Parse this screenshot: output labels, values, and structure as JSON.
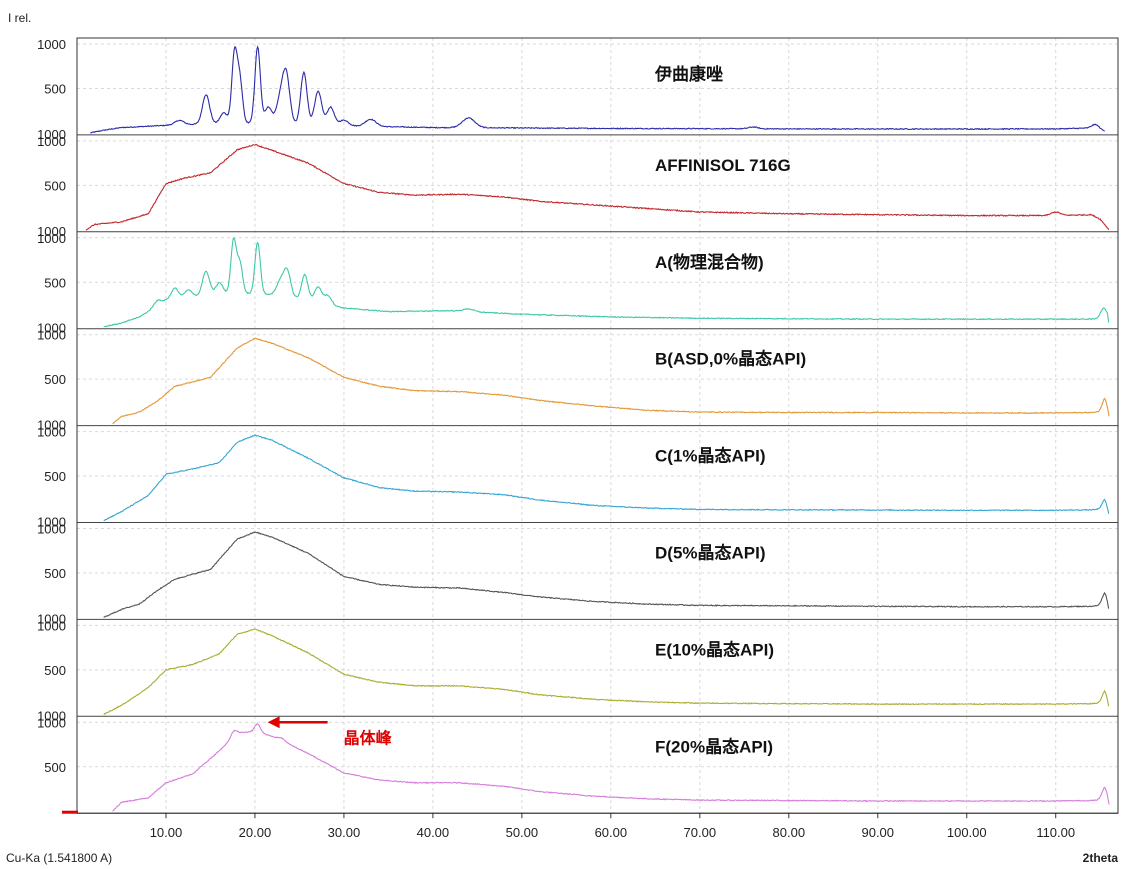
{
  "chart_data": {
    "type": "line",
    "y_axis_label": "I rel.",
    "x_axis_label": "2theta",
    "radiation_label": "Cu-Ka (1.541800 A)",
    "x_range": [
      0.0,
      117.0
    ],
    "x_ticks": [
      "10.00",
      "20.00",
      "30.00",
      "40.00",
      "50.00",
      "60.00",
      "70.00",
      "80.00",
      "90.00",
      "100.00",
      "110.00"
    ],
    "x_tick_values": [
      10,
      20,
      30,
      40,
      50,
      60,
      70,
      80,
      90,
      100,
      110
    ],
    "y_ticks": [
      "1000",
      "500"
    ],
    "y_tick_values": [
      1000,
      500
    ],
    "bottom_tick_label": "1000",
    "y_range": [
      0,
      1000
    ],
    "grid": true,
    "annotation": {
      "text": "晶体峰",
      "x": 20.3,
      "panel": 7,
      "color": "#e00000"
    },
    "panels": [
      {
        "name": "伊曲康唑",
        "color": "#2b2ba8",
        "baseline": [
          [
            1.5,
            0
          ],
          [
            3,
            30
          ],
          [
            5,
            60
          ],
          [
            8,
            75
          ],
          [
            10,
            85
          ],
          [
            14,
            100
          ],
          [
            18,
            110
          ],
          [
            22,
            110
          ],
          [
            27,
            95
          ],
          [
            32,
            75
          ],
          [
            40,
            60
          ],
          [
            45,
            58
          ],
          [
            50,
            55
          ],
          [
            60,
            50
          ],
          [
            70,
            48
          ],
          [
            80,
            45
          ],
          [
            90,
            44
          ],
          [
            100,
            44
          ],
          [
            110,
            45
          ],
          [
            114,
            55
          ],
          [
            115.5,
            20
          ]
        ],
        "peaks": [
          [
            11.5,
            50,
            0.5
          ],
          [
            14.5,
            330,
            0.4
          ],
          [
            16.5,
            120,
            0.4
          ],
          [
            17.7,
            780,
            0.3
          ],
          [
            18.3,
            480,
            0.3
          ],
          [
            20.3,
            860,
            0.3
          ],
          [
            21.5,
            180,
            0.4
          ],
          [
            22.8,
            250,
            0.4
          ],
          [
            23.5,
            560,
            0.4
          ],
          [
            25.5,
            580,
            0.35
          ],
          [
            27.1,
            370,
            0.4
          ],
          [
            28.5,
            200,
            0.4
          ],
          [
            30,
            60,
            0.5
          ],
          [
            33,
            80,
            0.6
          ],
          [
            44,
            110,
            0.7
          ],
          [
            76,
            20,
            0.5
          ],
          [
            114.5,
            50,
            0.4
          ]
        ],
        "noise": 10
      },
      {
        "name": "AFFINISOL 716G",
        "color": "#c0282d",
        "baseline": [
          [
            1,
            0
          ],
          [
            2,
            60
          ],
          [
            5,
            90
          ],
          [
            8,
            180
          ],
          [
            10,
            520
          ],
          [
            12,
            580
          ],
          [
            15,
            640
          ],
          [
            18,
            900
          ],
          [
            20,
            960
          ],
          [
            22,
            890
          ],
          [
            26,
            750
          ],
          [
            30,
            520
          ],
          [
            34,
            420
          ],
          [
            38,
            390
          ],
          [
            43,
            400
          ],
          [
            48,
            370
          ],
          [
            52,
            320
          ],
          [
            58,
            280
          ],
          [
            64,
            240
          ],
          [
            70,
            200
          ],
          [
            80,
            180
          ],
          [
            90,
            170
          ],
          [
            100,
            160
          ],
          [
            110,
            160
          ],
          [
            114,
            170
          ],
          [
            115,
            120
          ],
          [
            116,
            0
          ]
        ],
        "peaks": [
          [
            110,
            40,
            0.5
          ]
        ],
        "noise": 12
      },
      {
        "name": "A(物理混合物)",
        "color": "#3ec9a7",
        "baseline": [
          [
            3,
            0
          ],
          [
            5,
            40
          ],
          [
            7,
            110
          ],
          [
            8.5,
            200
          ],
          [
            10,
            300
          ],
          [
            13,
            340
          ],
          [
            18,
            380
          ],
          [
            22,
            360
          ],
          [
            26,
            300
          ],
          [
            30,
            210
          ],
          [
            35,
            170
          ],
          [
            42,
            180
          ],
          [
            50,
            140
          ],
          [
            60,
            110
          ],
          [
            70,
            95
          ],
          [
            80,
            90
          ],
          [
            90,
            85
          ],
          [
            100,
            85
          ],
          [
            110,
            85
          ],
          [
            114,
            85
          ],
          [
            115.8,
            100
          ],
          [
            116,
            0
          ]
        ],
        "peaks": [
          [
            9,
            60,
            0.4
          ],
          [
            11,
            120,
            0.4
          ],
          [
            12.5,
            80,
            0.4
          ],
          [
            14.5,
            270,
            0.4
          ],
          [
            16,
            130,
            0.4
          ],
          [
            17.6,
            600,
            0.3
          ],
          [
            18.3,
            340,
            0.3
          ],
          [
            20.3,
            580,
            0.3
          ],
          [
            22.8,
            150,
            0.4
          ],
          [
            23.6,
            300,
            0.4
          ],
          [
            25.6,
            280,
            0.35
          ],
          [
            27.1,
            170,
            0.4
          ],
          [
            28.2,
            100,
            0.4
          ],
          [
            44,
            30,
            0.6
          ],
          [
            115.4,
            110,
            0.35
          ]
        ],
        "noise": 10
      },
      {
        "name": "B(ASD,0%晶态API)",
        "color": "#e39838",
        "baseline": [
          [
            4,
            0
          ],
          [
            5,
            80
          ],
          [
            7,
            130
          ],
          [
            9,
            250
          ],
          [
            11,
            420
          ],
          [
            15,
            520
          ],
          [
            18,
            850
          ],
          [
            20,
            960
          ],
          [
            22,
            900
          ],
          [
            26,
            740
          ],
          [
            30,
            520
          ],
          [
            34,
            420
          ],
          [
            38,
            370
          ],
          [
            43,
            360
          ],
          [
            48,
            320
          ],
          [
            52,
            260
          ],
          [
            58,
            200
          ],
          [
            64,
            150
          ],
          [
            70,
            130
          ],
          [
            80,
            125
          ],
          [
            90,
            125
          ],
          [
            100,
            120
          ],
          [
            110,
            120
          ],
          [
            114,
            125
          ],
          [
            115.5,
            130
          ],
          [
            116,
            0
          ]
        ],
        "peaks": [
          [
            115.6,
            160,
            0.35
          ]
        ],
        "noise": 10
      },
      {
        "name": "C(1%晶态API)",
        "color": "#36a7d4",
        "baseline": [
          [
            3,
            0
          ],
          [
            5,
            100
          ],
          [
            8,
            280
          ],
          [
            10,
            520
          ],
          [
            13,
            580
          ],
          [
            16,
            650
          ],
          [
            18,
            880
          ],
          [
            20,
            960
          ],
          [
            22,
            900
          ],
          [
            26,
            700
          ],
          [
            30,
            480
          ],
          [
            34,
            370
          ],
          [
            38,
            330
          ],
          [
            43,
            320
          ],
          [
            48,
            290
          ],
          [
            52,
            230
          ],
          [
            58,
            170
          ],
          [
            64,
            140
          ],
          [
            70,
            125
          ],
          [
            80,
            120
          ],
          [
            90,
            118
          ],
          [
            100,
            115
          ],
          [
            110,
            115
          ],
          [
            114,
            120
          ],
          [
            115.5,
            130
          ],
          [
            116,
            0
          ]
        ],
        "peaks": [
          [
            115.6,
            110,
            0.35
          ]
        ],
        "noise": 10
      },
      {
        "name": "D(5%晶态API)",
        "color": "#555555",
        "baseline": [
          [
            3,
            0
          ],
          [
            5,
            90
          ],
          [
            7,
            150
          ],
          [
            9,
            300
          ],
          [
            11,
            430
          ],
          [
            15,
            540
          ],
          [
            18,
            880
          ],
          [
            20,
            960
          ],
          [
            22,
            900
          ],
          [
            26,
            720
          ],
          [
            30,
            460
          ],
          [
            34,
            370
          ],
          [
            38,
            340
          ],
          [
            43,
            330
          ],
          [
            48,
            280
          ],
          [
            52,
            230
          ],
          [
            58,
            180
          ],
          [
            64,
            150
          ],
          [
            70,
            135
          ],
          [
            80,
            130
          ],
          [
            90,
            125
          ],
          [
            100,
            120
          ],
          [
            110,
            120
          ],
          [
            114,
            125
          ],
          [
            115.5,
            135
          ],
          [
            116,
            0
          ]
        ],
        "peaks": [
          [
            115.6,
            150,
            0.35
          ]
        ],
        "noise": 10
      },
      {
        "name": "E(10%晶态API)",
        "color": "#a8ad31",
        "baseline": [
          [
            3,
            0
          ],
          [
            5,
            100
          ],
          [
            8,
            300
          ],
          [
            10,
            500
          ],
          [
            13,
            560
          ],
          [
            16,
            680
          ],
          [
            18,
            900
          ],
          [
            20,
            960
          ],
          [
            22,
            880
          ],
          [
            26,
            690
          ],
          [
            30,
            450
          ],
          [
            34,
            360
          ],
          [
            38,
            320
          ],
          [
            43,
            320
          ],
          [
            48,
            280
          ],
          [
            52,
            220
          ],
          [
            58,
            170
          ],
          [
            64,
            140
          ],
          [
            70,
            125
          ],
          [
            80,
            120
          ],
          [
            90,
            115
          ],
          [
            100,
            115
          ],
          [
            110,
            115
          ],
          [
            114,
            120
          ],
          [
            115.5,
            130
          ],
          [
            116,
            0
          ]
        ],
        "peaks": [
          [
            115.6,
            140,
            0.35
          ]
        ],
        "noise": 10
      },
      {
        "name": "F(20%晶态API)",
        "color": "#d67ddc",
        "baseline": [
          [
            4,
            0
          ],
          [
            5,
            100
          ],
          [
            8,
            150
          ],
          [
            10,
            320
          ],
          [
            13,
            420
          ],
          [
            16,
            680
          ],
          [
            18,
            880
          ],
          [
            20,
            900
          ],
          [
            22,
            840
          ],
          [
            26,
            650
          ],
          [
            30,
            430
          ],
          [
            34,
            350
          ],
          [
            38,
            320
          ],
          [
            43,
            320
          ],
          [
            48,
            280
          ],
          [
            52,
            220
          ],
          [
            58,
            170
          ],
          [
            64,
            140
          ],
          [
            70,
            125
          ],
          [
            80,
            120
          ],
          [
            90,
            115
          ],
          [
            100,
            115
          ],
          [
            110,
            115
          ],
          [
            114,
            120
          ],
          [
            115.5,
            130
          ],
          [
            116,
            0
          ]
        ],
        "peaks": [
          [
            17.6,
            60,
            0.3
          ],
          [
            20.3,
            90,
            0.3
          ],
          [
            23,
            30,
            0.4
          ],
          [
            115.6,
            150,
            0.35
          ]
        ],
        "noise": 10
      }
    ]
  }
}
